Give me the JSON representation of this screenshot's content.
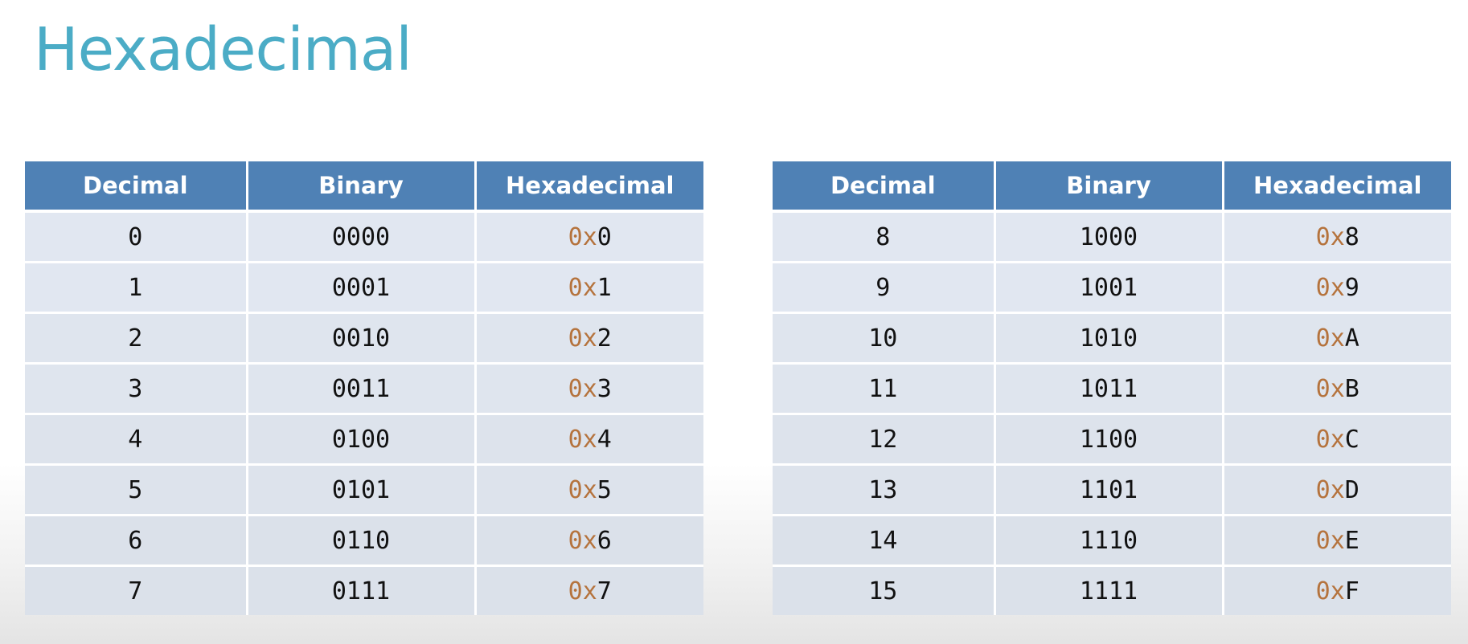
{
  "title": "Hexadecimal",
  "columns": {
    "decimal": "Decimal",
    "binary": "Binary",
    "hexadecimal": "Hexadecimal"
  },
  "hex_prefix": "0x",
  "colors": {
    "title": "#4bacc6",
    "header_background": "#4f81b5",
    "cell_background": "#e1e7f1",
    "hex_prefix": "#b5733d"
  },
  "tables": [
    {
      "rows": [
        {
          "decimal": "0",
          "binary": "0000",
          "hex_digit": "0"
        },
        {
          "decimal": "1",
          "binary": "0001",
          "hex_digit": "1"
        },
        {
          "decimal": "2",
          "binary": "0010",
          "hex_digit": "2"
        },
        {
          "decimal": "3",
          "binary": "0011",
          "hex_digit": "3"
        },
        {
          "decimal": "4",
          "binary": "0100",
          "hex_digit": "4"
        },
        {
          "decimal": "5",
          "binary": "0101",
          "hex_digit": "5"
        },
        {
          "decimal": "6",
          "binary": "0110",
          "hex_digit": "6"
        },
        {
          "decimal": "7",
          "binary": "0111",
          "hex_digit": "7"
        }
      ]
    },
    {
      "rows": [
        {
          "decimal": "8",
          "binary": "1000",
          "hex_digit": "8"
        },
        {
          "decimal": "9",
          "binary": "1001",
          "hex_digit": "9"
        },
        {
          "decimal": "10",
          "binary": "1010",
          "hex_digit": "A"
        },
        {
          "decimal": "11",
          "binary": "1011",
          "hex_digit": "B"
        },
        {
          "decimal": "12",
          "binary": "1100",
          "hex_digit": "C"
        },
        {
          "decimal": "13",
          "binary": "1101",
          "hex_digit": "D"
        },
        {
          "decimal": "14",
          "binary": "1110",
          "hex_digit": "E"
        },
        {
          "decimal": "15",
          "binary": "1111",
          "hex_digit": "F"
        }
      ]
    }
  ]
}
